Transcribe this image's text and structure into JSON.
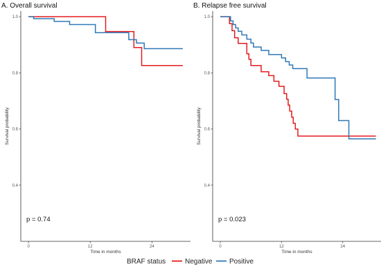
{
  "chart_data": [
    {
      "type": "line",
      "title": "A. Overall survival",
      "xlabel": "Time in months",
      "ylabel": "Survival probability",
      "xlim": [
        -1.5,
        31.5
      ],
      "ylim": [
        0.2,
        1.02
      ],
      "xticks": [
        0,
        12,
        24
      ],
      "yticks": [
        0.4,
        0.6,
        0.8,
        1.0
      ],
      "ytick_labels": [
        "0.4",
        "0.6",
        "0.8",
        "1.0"
      ],
      "annotation": "p = 0.74",
      "series": [
        {
          "name": "Negative",
          "color": "#e41a1c",
          "x": [
            0,
            15,
            15,
            20.5,
            20.5,
            22,
            22,
            30
          ],
          "y": [
            1.0,
            1.0,
            0.947,
            0.947,
            0.89,
            0.89,
            0.826,
            0.826
          ]
        },
        {
          "name": "Positive",
          "color": "#2e78b7",
          "x": [
            0,
            1,
            1,
            5,
            5,
            8,
            8,
            13,
            13,
            19.5,
            19.5,
            21,
            21,
            22.5,
            22.5,
            30
          ],
          "y": [
            1.0,
            1.0,
            0.993,
            0.993,
            0.983,
            0.983,
            0.972,
            0.972,
            0.943,
            0.943,
            0.918,
            0.918,
            0.906,
            0.906,
            0.886,
            0.886
          ]
        }
      ]
    },
    {
      "type": "line",
      "title": "B. Relapse free survival",
      "xlabel": "Time in months",
      "ylabel": "Survival probability",
      "xlim": [
        -1.5,
        31.5
      ],
      "ylim": [
        0.2,
        1.02
      ],
      "xticks": [
        0,
        12,
        24
      ],
      "yticks": [
        0.4,
        0.6,
        0.8,
        1.0
      ],
      "ytick_labels": [
        "0.4",
        "0.6",
        "0.8",
        "1.0"
      ],
      "annotation": "p = 0.023",
      "series": [
        {
          "name": "Negative",
          "color": "#e41a1c",
          "x": [
            0,
            1.8,
            1.8,
            2.3,
            2.3,
            2.8,
            2.8,
            3.5,
            3.5,
            5.2,
            5.2,
            5.6,
            5.6,
            6,
            6,
            8,
            8,
            9.5,
            9.5,
            10.5,
            10.5,
            11.5,
            11.5,
            12.5,
            12.5,
            13,
            13,
            13.3,
            13.3,
            13.6,
            13.6,
            14,
            14,
            14.3,
            14.3,
            14.7,
            14.7,
            15.2,
            15.2,
            30.5
          ],
          "y": [
            1.0,
            1.0,
            0.975,
            0.975,
            0.95,
            0.95,
            0.925,
            0.925,
            0.905,
            0.905,
            0.868,
            0.868,
            0.848,
            0.848,
            0.826,
            0.826,
            0.804,
            0.804,
            0.79,
            0.79,
            0.77,
            0.77,
            0.752,
            0.752,
            0.726,
            0.726,
            0.706,
            0.706,
            0.685,
            0.685,
            0.664,
            0.664,
            0.642,
            0.642,
            0.62,
            0.62,
            0.6,
            0.6,
            0.575,
            0.575
          ]
        },
        {
          "name": "Positive",
          "color": "#2e78b7",
          "x": [
            0,
            2,
            2,
            2.5,
            2.5,
            3,
            3,
            3.5,
            3.5,
            4.2,
            4.2,
            5.2,
            5.2,
            6,
            6,
            6.5,
            6.5,
            8,
            8,
            9.5,
            9.5,
            12,
            12,
            12.8,
            12.8,
            13.5,
            13.5,
            14.2,
            14.2,
            17,
            17,
            22.5,
            22.5,
            23.2,
            23.2,
            25.2,
            25.2,
            30.5
          ],
          "y": [
            1.0,
            1.0,
            0.985,
            0.985,
            0.972,
            0.972,
            0.96,
            0.96,
            0.948,
            0.948,
            0.935,
            0.935,
            0.92,
            0.92,
            0.906,
            0.906,
            0.892,
            0.892,
            0.88,
            0.88,
            0.865,
            0.865,
            0.853,
            0.853,
            0.84,
            0.84,
            0.828,
            0.828,
            0.815,
            0.815,
            0.782,
            0.782,
            0.705,
            0.705,
            0.63,
            0.63,
            0.565,
            0.565
          ]
        }
      ]
    }
  ],
  "legend": {
    "title": "BRAF status",
    "items": [
      {
        "label": "Negative",
        "color": "#e41a1c"
      },
      {
        "label": "Positive",
        "color": "#2e78b7"
      }
    ]
  }
}
